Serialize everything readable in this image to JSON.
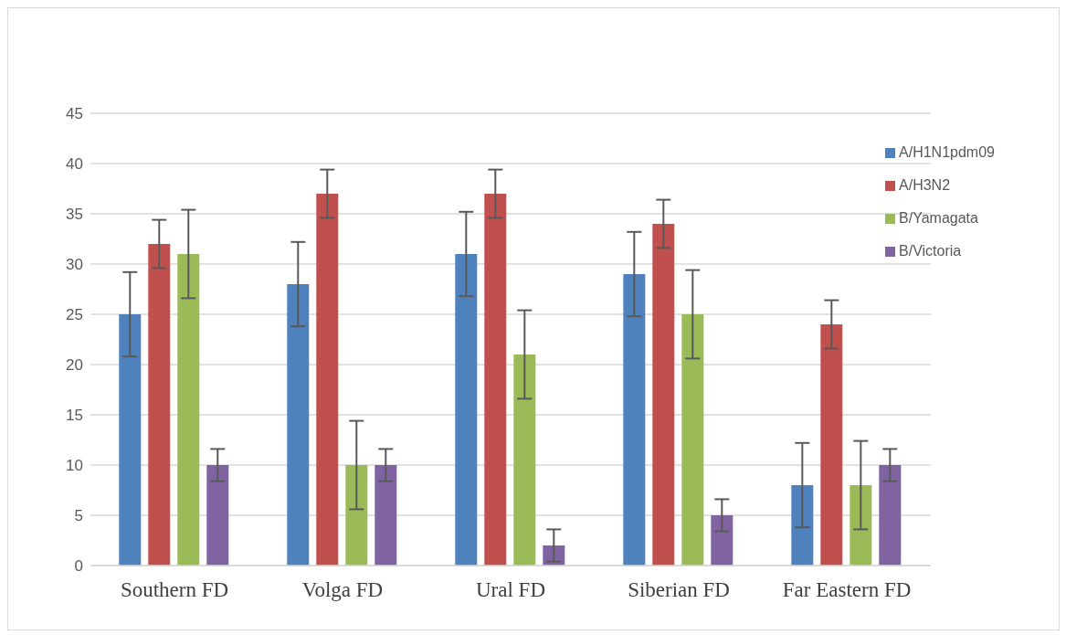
{
  "chart_data": {
    "type": "bar",
    "categories": [
      "Southern FD",
      "Volga FD",
      "Ural FD",
      "Siberian FD",
      "Far Eastern FD"
    ],
    "series": [
      {
        "name": "A/H1N1pdm09",
        "color": "#4f81bd",
        "values": [
          25,
          28,
          31,
          29,
          8
        ],
        "errors": [
          4.2,
          4.2,
          4.2,
          4.2,
          4.2
        ]
      },
      {
        "name": "A/H3N2",
        "color": "#c0504d",
        "values": [
          32,
          37,
          37,
          34,
          24
        ],
        "errors": [
          2.4,
          2.4,
          2.4,
          2.4,
          2.4
        ]
      },
      {
        "name": "B/Yamagata",
        "color": "#9bbb59",
        "values": [
          31,
          10,
          21,
          25,
          8
        ],
        "errors": [
          4.4,
          4.4,
          4.4,
          4.4,
          4.4
        ]
      },
      {
        "name": "B/Victoria",
        "color": "#8064a2",
        "values": [
          10,
          10,
          2,
          5,
          10
        ],
        "errors": [
          1.6,
          1.6,
          1.6,
          1.6,
          1.6
        ]
      }
    ],
    "ylim": [
      0,
      45
    ],
    "yticks": [
      0,
      5,
      10,
      15,
      20,
      25,
      30,
      35,
      40,
      45
    ],
    "grid": "y",
    "legend": "top right"
  }
}
